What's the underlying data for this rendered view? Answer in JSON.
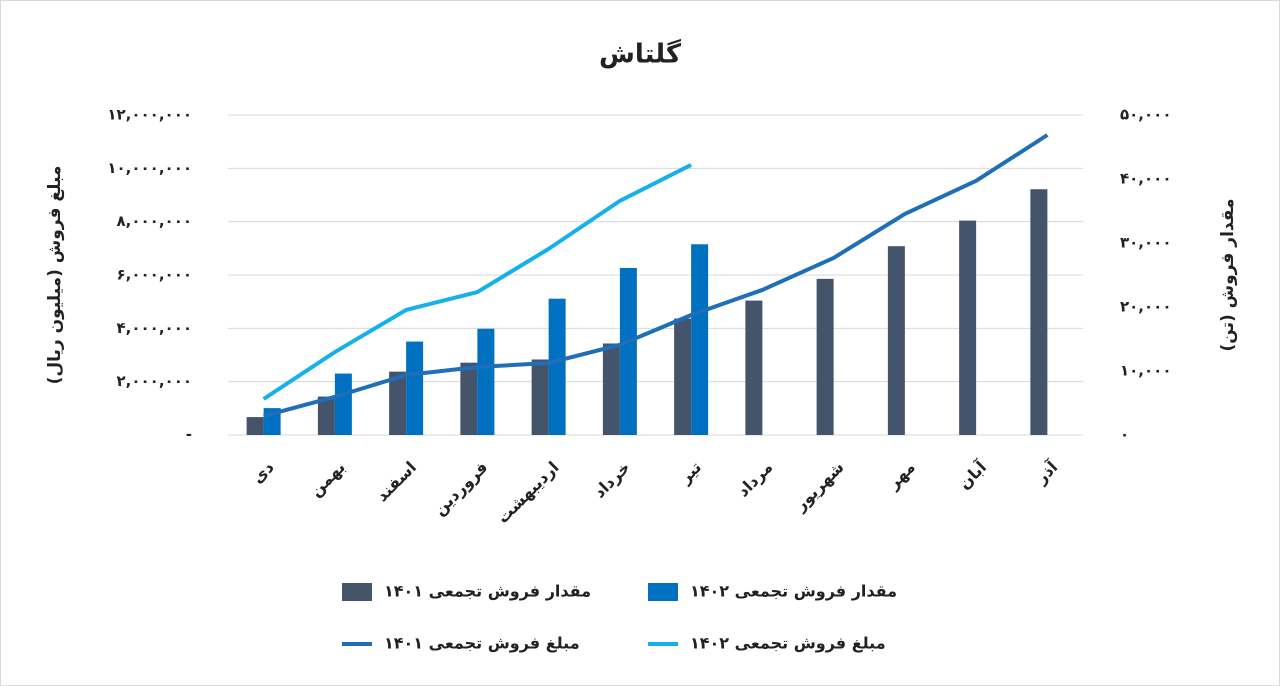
{
  "chart_data": {
    "type": "combo",
    "title": "گلتاش",
    "y_label": "مبلغ فروش (میلیون ریال)",
    "y2_label": "مقدار فروش (تن)",
    "categories": [
      "دی",
      "بهمن",
      "اسفند",
      "فروردین",
      "اردیبهشت",
      "خرداد",
      "تیر",
      "مرداد",
      "شهریور",
      "مهر",
      "آبان",
      "آذر"
    ],
    "ylim": [
      0,
      12000000
    ],
    "yticks": [
      {
        "value": 0,
        "label": "-"
      },
      {
        "value": 2000000,
        "label": "۲,۰۰۰,۰۰۰"
      },
      {
        "value": 4000000,
        "label": "۴,۰۰۰,۰۰۰"
      },
      {
        "value": 6000000,
        "label": "۶,۰۰۰,۰۰۰"
      },
      {
        "value": 8000000,
        "label": "۸,۰۰۰,۰۰۰"
      },
      {
        "value": 10000000,
        "label": "۱۰,۰۰۰,۰۰۰"
      },
      {
        "value": 12000000,
        "label": "۱۲,۰۰۰,۰۰۰"
      }
    ],
    "y2lim": [
      0,
      50000
    ],
    "y2ticks": [
      {
        "value": 0,
        "label": "۰"
      },
      {
        "value": 10000,
        "label": "۱۰,۰۰۰"
      },
      {
        "value": 20000,
        "label": "۲۰,۰۰۰"
      },
      {
        "value": 30000,
        "label": "۳۰,۰۰۰"
      },
      {
        "value": 40000,
        "label": "۴۰,۰۰۰"
      },
      {
        "value": 50000,
        "label": "۵۰,۰۰۰"
      }
    ],
    "grid": true,
    "series": [
      {
        "name": "مقدار فروش تجمعی ۱۴۰۱",
        "type": "bar",
        "axis": "y2",
        "color": "#44546a",
        "values": [
          2800,
          6000,
          9900,
          11300,
          11800,
          14300,
          18200,
          21000,
          24400,
          29500,
          33500,
          38400
        ]
      },
      {
        "name": "مقدار فروش تجمعی ۱۴۰۲",
        "type": "bar",
        "axis": "y2",
        "color": "#0070c0",
        "values": [
          4200,
          9600,
          14600,
          16600,
          21300,
          26100,
          29800,
          null,
          null,
          null,
          null,
          null
        ]
      },
      {
        "name": "مبلغ فروش تجمعی ۱۴۰۱",
        "type": "line",
        "color": "#1f6fb8",
        "values": [
          710000,
          1430000,
          2250000,
          2550000,
          2700000,
          3380000,
          4500000,
          5440000,
          6640000,
          8290000,
          9530000,
          11250000
        ]
      },
      {
        "name": "مبلغ فروش تجمعی ۱۴۰۲",
        "type": "line",
        "color": "#14b1ea",
        "values": [
          1350000,
          3110000,
          4690000,
          5360000,
          6980000,
          8780000,
          10130000,
          null,
          null,
          null,
          null,
          null
        ]
      }
    ]
  }
}
